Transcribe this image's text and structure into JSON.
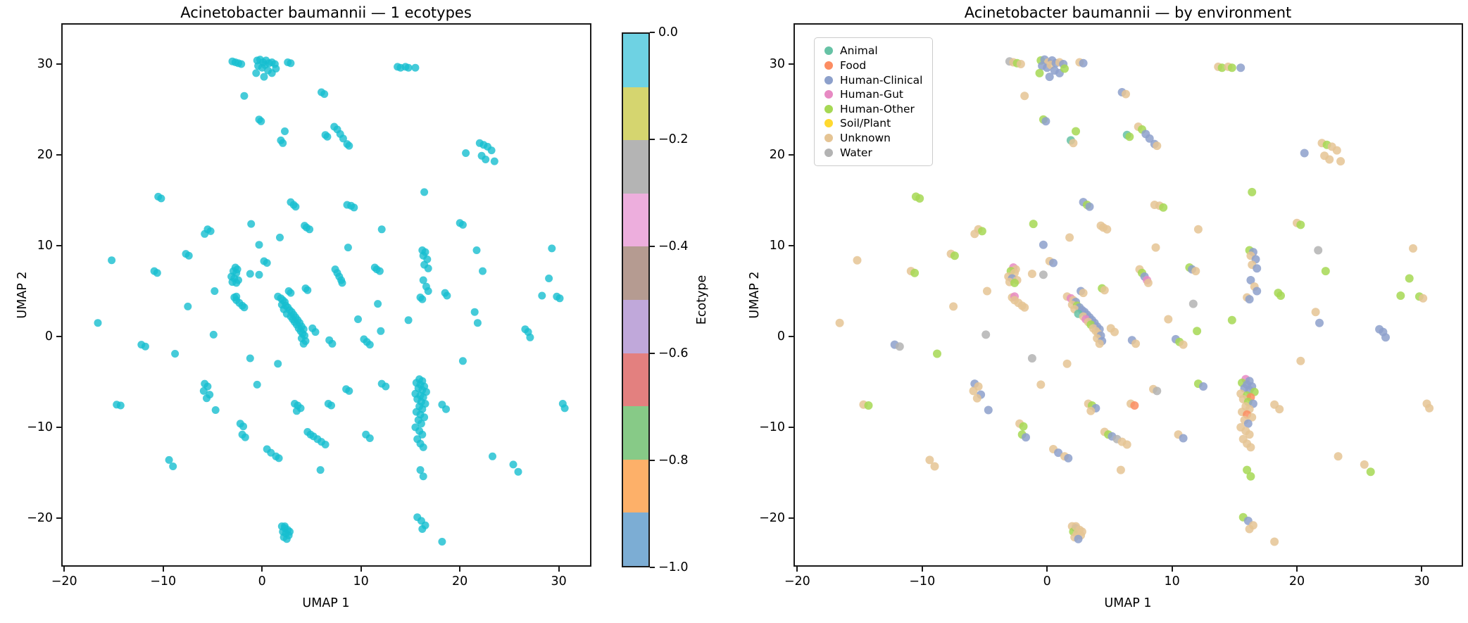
{
  "left_plot": {
    "title": "Acinetobacter baumannii — 1 ecotypes",
    "xlabel": "UMAP 1",
    "ylabel": "UMAP 2",
    "marker_color": "#17becf"
  },
  "right_plot": {
    "title": "Acinetobacter baumannii — by environment",
    "xlabel": "UMAP 1",
    "ylabel": "UMAP 2"
  },
  "colorbar": {
    "label": "Ecotype",
    "tick_labels": [
      "0.0",
      "−0.2",
      "−0.4",
      "−0.6",
      "−0.8",
      "−1.0"
    ],
    "segments": [
      "#6ed2e3",
      "#d5d56f",
      "#b4b4b4",
      "#edaedd",
      "#b59b91",
      "#c0a8da",
      "#e3807f",
      "#87ca87",
      "#fdb069",
      "#7cadd4"
    ]
  },
  "legend": {
    "entries": [
      {
        "key": "A",
        "label": "Animal",
        "color": "#66c2a5"
      },
      {
        "key": "F",
        "label": "Food",
        "color": "#fc8d62"
      },
      {
        "key": "HC",
        "label": "Human-Clinical",
        "color": "#8da0cb"
      },
      {
        "key": "HG",
        "label": "Human-Gut",
        "color": "#e78ac3"
      },
      {
        "key": "HO",
        "label": "Human-Other",
        "color": "#a6d854"
      },
      {
        "key": "SP",
        "label": "Soil/Plant",
        "color": "#ffd92f"
      },
      {
        "key": "U",
        "label": "Unknown",
        "color": "#e5c494"
      },
      {
        "key": "W",
        "label": "Water",
        "color": "#b3b3b3"
      }
    ]
  },
  "chart_data": {
    "type": "scatter",
    "subplots": [
      "UMAP colored by single ecotype (all points ecotype 0, cyan)",
      "UMAP colored by environment"
    ],
    "xlabel": "UMAP 1",
    "ylabel": "UMAP 2",
    "xlim": [
      -20.3,
      33.3
    ],
    "ylim": [
      -25.35,
      34.5
    ],
    "x_ticks": [
      -20,
      -10,
      0,
      10,
      20,
      30
    ],
    "y_ticks": [
      30,
      20,
      10,
      0,
      -10,
      -20
    ],
    "x_tick_labels": [
      "−20",
      "−10",
      "0",
      "10",
      "20",
      "30"
    ],
    "y_tick_labels": [
      "30",
      "20",
      "10",
      "0",
      "−10",
      "−20"
    ],
    "grid": false,
    "legend_position": "upper left",
    "ecotype_of_all_points": 0,
    "colorbar_range": [
      0.0,
      -1.0
    ],
    "env_colors": {
      "A": "#66c2a5",
      "F": "#fc8d62",
      "HC": "#8da0cb",
      "HG": "#e78ac3",
      "HO": "#a6d854",
      "SP": "#ffd92f",
      "U": "#e5c494",
      "W": "#b3b3b3"
    },
    "points": [
      [
        -3.0,
        30.3,
        "W"
      ],
      [
        -2.7,
        30.2,
        "U"
      ],
      [
        -2.4,
        30.1,
        "HO"
      ],
      [
        -2.1,
        30.0,
        "U"
      ],
      [
        -0.5,
        30.4,
        "HO"
      ],
      [
        -0.2,
        30.5,
        "HC"
      ],
      [
        0.1,
        30.2,
        "U"
      ],
      [
        0.4,
        30.4,
        "HC"
      ],
      [
        -0.4,
        29.8,
        "HC"
      ],
      [
        0.0,
        29.6,
        "HC"
      ],
      [
        0.3,
        29.9,
        "U"
      ],
      [
        0.7,
        30.1,
        "HC"
      ],
      [
        1.0,
        30.2,
        "U"
      ],
      [
        1.3,
        30.0,
        "HC"
      ],
      [
        0.6,
        29.3,
        "HC"
      ],
      [
        1.0,
        29.0,
        "HC"
      ],
      [
        0.2,
        28.6,
        "HC"
      ],
      [
        1.4,
        29.5,
        "HO"
      ],
      [
        -0.6,
        29.0,
        "HO"
      ],
      [
        2.6,
        30.2,
        "U"
      ],
      [
        2.9,
        30.1,
        "HC"
      ],
      [
        13.7,
        29.7,
        "U"
      ],
      [
        14.0,
        29.6,
        "HO"
      ],
      [
        14.5,
        29.7,
        "U"
      ],
      [
        14.8,
        29.6,
        "HO"
      ],
      [
        15.5,
        29.6,
        "HC"
      ],
      [
        6.0,
        26.9,
        "HC"
      ],
      [
        6.3,
        26.7,
        "U"
      ],
      [
        -1.8,
        26.5,
        "U"
      ],
      [
        -0.3,
        23.9,
        "HO"
      ],
      [
        -0.1,
        23.7,
        "HC"
      ],
      [
        2.3,
        22.6,
        "HO"
      ],
      [
        1.9,
        21.6,
        "A"
      ],
      [
        2.1,
        21.3,
        "U"
      ],
      [
        6.4,
        22.2,
        "A"
      ],
      [
        6.6,
        22.0,
        "HO"
      ],
      [
        7.3,
        23.1,
        "U"
      ],
      [
        7.6,
        22.8,
        "HO"
      ],
      [
        7.9,
        22.3,
        "HC"
      ],
      [
        8.2,
        21.8,
        "HC"
      ],
      [
        8.6,
        21.2,
        "HC"
      ],
      [
        8.8,
        21.0,
        "U"
      ],
      [
        20.6,
        20.2,
        "HC"
      ],
      [
        22.0,
        21.3,
        "U"
      ],
      [
        22.4,
        21.1,
        "HO"
      ],
      [
        22.8,
        20.9,
        "U"
      ],
      [
        23.2,
        20.5,
        "U"
      ],
      [
        22.2,
        19.9,
        "U"
      ],
      [
        22.6,
        19.5,
        "U"
      ],
      [
        23.5,
        19.3,
        "U"
      ],
      [
        -10.5,
        15.4,
        "HO"
      ],
      [
        -10.2,
        15.2,
        "HO"
      ],
      [
        16.4,
        15.9,
        "HO"
      ],
      [
        2.9,
        14.8,
        "HC"
      ],
      [
        3.2,
        14.5,
        "HO"
      ],
      [
        3.4,
        14.3,
        "HC"
      ],
      [
        8.6,
        14.5,
        "U"
      ],
      [
        9.0,
        14.4,
        "U"
      ],
      [
        9.3,
        14.2,
        "HO"
      ],
      [
        20.0,
        12.5,
        "U"
      ],
      [
        20.3,
        12.3,
        "HO"
      ],
      [
        12.1,
        11.8,
        "U"
      ],
      [
        -1.1,
        12.4,
        "HO"
      ],
      [
        4.3,
        12.2,
        "U"
      ],
      [
        4.5,
        12.0,
        "U"
      ],
      [
        4.8,
        11.8,
        "U"
      ],
      [
        1.8,
        10.9,
        "U"
      ],
      [
        -5.5,
        11.8,
        "U"
      ],
      [
        -5.2,
        11.6,
        "HO"
      ],
      [
        -5.8,
        11.3,
        "U"
      ],
      [
        -0.3,
        10.1,
        "HC"
      ],
      [
        8.7,
        9.8,
        "U"
      ],
      [
        -7.7,
        9.1,
        "U"
      ],
      [
        -7.4,
        8.9,
        "HO"
      ],
      [
        21.7,
        9.5,
        "W"
      ],
      [
        29.3,
        9.7,
        "U"
      ],
      [
        -15.2,
        8.4,
        "U"
      ],
      [
        0.2,
        8.3,
        "U"
      ],
      [
        0.5,
        8.1,
        "HC"
      ],
      [
        -10.9,
        7.2,
        "U"
      ],
      [
        -10.6,
        7.0,
        "HO"
      ],
      [
        -2.7,
        7.6,
        "HG"
      ],
      [
        -2.5,
        7.4,
        "U"
      ],
      [
        -2.9,
        7.2,
        "HO"
      ],
      [
        -2.6,
        7.0,
        "U"
      ],
      [
        -3.1,
        6.6,
        "U"
      ],
      [
        -2.8,
        6.4,
        "HC"
      ],
      [
        -2.4,
        6.2,
        "U"
      ],
      [
        -3.0,
        6.0,
        "U"
      ],
      [
        -2.6,
        5.9,
        "HO"
      ],
      [
        -1.2,
        6.9,
        "U"
      ],
      [
        -0.3,
        6.8,
        "W"
      ],
      [
        7.4,
        7.4,
        "U"
      ],
      [
        7.6,
        7.0,
        "HO"
      ],
      [
        7.8,
        6.6,
        "HC"
      ],
      [
        8.0,
        6.2,
        "HG"
      ],
      [
        8.1,
        5.9,
        "U"
      ],
      [
        11.4,
        7.6,
        "HO"
      ],
      [
        11.6,
        7.4,
        "HC"
      ],
      [
        11.9,
        7.2,
        "U"
      ],
      [
        16.2,
        9.5,
        "HO"
      ],
      [
        16.5,
        9.3,
        "HC"
      ],
      [
        16.3,
        8.9,
        "U"
      ],
      [
        16.7,
        8.5,
        "HC"
      ],
      [
        16.4,
        7.9,
        "U"
      ],
      [
        16.8,
        7.5,
        "HC"
      ],
      [
        22.3,
        7.2,
        "HO"
      ],
      [
        29.0,
        6.4,
        "HO"
      ],
      [
        -4.8,
        5.0,
        "U"
      ],
      [
        2.7,
        5.0,
        "HC"
      ],
      [
        2.9,
        4.8,
        "U"
      ],
      [
        4.4,
        5.3,
        "HO"
      ],
      [
        4.6,
        5.1,
        "U"
      ],
      [
        16.3,
        6.2,
        "HC"
      ],
      [
        16.6,
        5.5,
        "U"
      ],
      [
        16.8,
        5.0,
        "HC"
      ],
      [
        18.5,
        4.8,
        "HO"
      ],
      [
        28.3,
        4.5,
        "HO"
      ],
      [
        29.8,
        4.4,
        "HO"
      ],
      [
        30.1,
        4.2,
        "U"
      ],
      [
        16.0,
        4.3,
        "U"
      ],
      [
        16.2,
        4.1,
        "HC"
      ],
      [
        18.7,
        4.5,
        "HO"
      ],
      [
        11.7,
        3.6,
        "W"
      ],
      [
        -7.5,
        3.3,
        "U"
      ],
      [
        -2.8,
        4.3,
        "U"
      ],
      [
        -2.6,
        4.4,
        "HG"
      ],
      [
        -2.6,
        4.0,
        "U"
      ],
      [
        -2.3,
        3.7,
        "U"
      ],
      [
        -2.0,
        3.4,
        "U"
      ],
      [
        -1.8,
        3.2,
        "U"
      ],
      [
        -16.6,
        1.5,
        "U"
      ],
      [
        9.7,
        1.9,
        "U"
      ],
      [
        14.8,
        1.8,
        "HO"
      ],
      [
        12.0,
        0.6,
        "HO"
      ],
      [
        21.5,
        2.7,
        "U"
      ],
      [
        21.8,
        1.5,
        "HC"
      ],
      [
        26.6,
        0.8,
        "HC"
      ],
      [
        26.9,
        0.5,
        "HC"
      ],
      [
        27.1,
        -0.1,
        "HC"
      ],
      [
        1.6,
        4.4,
        "U"
      ],
      [
        1.9,
        4.2,
        "HG"
      ],
      [
        2.1,
        4.0,
        "U"
      ],
      [
        2.3,
        3.8,
        "HC"
      ],
      [
        2.0,
        3.5,
        "U"
      ],
      [
        2.4,
        3.4,
        "HO"
      ],
      [
        2.6,
        3.2,
        "HC"
      ],
      [
        2.2,
        3.0,
        "U"
      ],
      [
        2.8,
        2.9,
        "HC"
      ],
      [
        3.0,
        2.7,
        "HC"
      ],
      [
        2.5,
        2.5,
        "A"
      ],
      [
        3.2,
        2.4,
        "HC"
      ],
      [
        2.9,
        2.2,
        "U"
      ],
      [
        3.4,
        2.1,
        "HC"
      ],
      [
        3.1,
        1.9,
        "HG"
      ],
      [
        3.6,
        1.8,
        "HC"
      ],
      [
        3.3,
        1.6,
        "U"
      ],
      [
        3.8,
        1.5,
        "HC"
      ],
      [
        3.5,
        1.3,
        "HO"
      ],
      [
        4.0,
        1.1,
        "HC"
      ],
      [
        3.7,
        0.9,
        "U"
      ],
      [
        4.2,
        0.8,
        "HC"
      ],
      [
        3.9,
        0.6,
        "U"
      ],
      [
        4.1,
        0.3,
        "U"
      ],
      [
        4.3,
        0.1,
        "HC"
      ],
      [
        4.0,
        -0.2,
        "U"
      ],
      [
        4.4,
        -0.5,
        "HC"
      ],
      [
        4.2,
        -0.8,
        "U"
      ],
      [
        5.1,
        0.9,
        "U"
      ],
      [
        5.4,
        0.5,
        "U"
      ],
      [
        6.8,
        -0.4,
        "HC"
      ],
      [
        7.1,
        -0.8,
        "U"
      ],
      [
        10.3,
        -0.3,
        "HC"
      ],
      [
        10.6,
        -0.6,
        "HO"
      ],
      [
        10.9,
        -0.9,
        "U"
      ],
      [
        -4.9,
        0.2,
        "W"
      ],
      [
        -12.2,
        -0.9,
        "HC"
      ],
      [
        -11.8,
        -1.1,
        "W"
      ],
      [
        -8.8,
        -1.9,
        "HO"
      ],
      [
        -1.2,
        -2.4,
        "W"
      ],
      [
        1.6,
        -3.0,
        "U"
      ],
      [
        20.3,
        -2.7,
        "U"
      ],
      [
        -0.5,
        -5.3,
        "U"
      ],
      [
        -5.8,
        -5.2,
        "HC"
      ],
      [
        -5.5,
        -5.5,
        "U"
      ],
      [
        -5.9,
        -6.0,
        "U"
      ],
      [
        -5.3,
        -6.4,
        "HC"
      ],
      [
        -5.6,
        -6.8,
        "U"
      ],
      [
        8.5,
        -5.8,
        "U"
      ],
      [
        8.8,
        -6.0,
        "W"
      ],
      [
        12.1,
        -5.2,
        "HO"
      ],
      [
        12.5,
        -5.5,
        "HC"
      ],
      [
        15.9,
        -4.7,
        "HG"
      ],
      [
        16.2,
        -4.9,
        "HC"
      ],
      [
        15.6,
        -5.1,
        "HO"
      ],
      [
        16.0,
        -5.3,
        "HC"
      ],
      [
        16.4,
        -5.5,
        "HC"
      ],
      [
        15.8,
        -5.7,
        "HC"
      ],
      [
        16.2,
        -5.9,
        "HC"
      ],
      [
        16.6,
        -6.1,
        "HO"
      ],
      [
        15.5,
        -6.3,
        "U"
      ],
      [
        16.0,
        -6.5,
        "HO"
      ],
      [
        16.3,
        -6.7,
        "F"
      ],
      [
        15.7,
        -6.9,
        "U"
      ],
      [
        16.1,
        -7.2,
        "HO"
      ],
      [
        16.5,
        -7.4,
        "HC"
      ],
      [
        15.9,
        -7.7,
        "U"
      ],
      [
        16.2,
        -8.0,
        "U"
      ],
      [
        15.6,
        -8.3,
        "U"
      ],
      [
        16.0,
        -8.6,
        "F"
      ],
      [
        16.4,
        -8.9,
        "U"
      ],
      [
        15.8,
        -9.2,
        "U"
      ],
      [
        16.1,
        -9.6,
        "HC"
      ],
      [
        15.5,
        -10.0,
        "U"
      ],
      [
        15.9,
        -10.4,
        "U"
      ],
      [
        16.2,
        -10.8,
        "U"
      ],
      [
        15.7,
        -11.3,
        "U"
      ],
      [
        16.0,
        -11.8,
        "U"
      ],
      [
        16.3,
        -12.2,
        "U"
      ],
      [
        18.2,
        -7.5,
        "U"
      ],
      [
        18.6,
        -8.0,
        "U"
      ],
      [
        6.7,
        -7.4,
        "U"
      ],
      [
        7.0,
        -7.6,
        "F"
      ],
      [
        3.3,
        -7.4,
        "U"
      ],
      [
        3.6,
        -7.6,
        "HO"
      ],
      [
        3.9,
        -7.9,
        "HC"
      ],
      [
        3.5,
        -8.2,
        "U"
      ],
      [
        -14.7,
        -7.5,
        "U"
      ],
      [
        -14.3,
        -7.6,
        "HO"
      ],
      [
        -4.7,
        -8.1,
        "HC"
      ],
      [
        30.4,
        -7.4,
        "U"
      ],
      [
        30.6,
        -7.9,
        "U"
      ],
      [
        -2.2,
        -9.6,
        "U"
      ],
      [
        -1.9,
        -9.9,
        "HO"
      ],
      [
        -2.0,
        -10.8,
        "HO"
      ],
      [
        -1.7,
        -11.1,
        "HC"
      ],
      [
        10.5,
        -10.8,
        "U"
      ],
      [
        10.9,
        -11.2,
        "HC"
      ],
      [
        4.6,
        -10.5,
        "U"
      ],
      [
        4.9,
        -10.8,
        "HO"
      ],
      [
        5.2,
        -11.0,
        "HC"
      ],
      [
        5.6,
        -11.3,
        "W"
      ],
      [
        6.0,
        -11.6,
        "U"
      ],
      [
        6.4,
        -11.9,
        "U"
      ],
      [
        0.5,
        -12.4,
        "U"
      ],
      [
        0.9,
        -12.8,
        "HC"
      ],
      [
        1.4,
        -13.2,
        "U"
      ],
      [
        1.7,
        -13.4,
        "HC"
      ],
      [
        5.9,
        -14.7,
        "U"
      ],
      [
        -9.4,
        -13.6,
        "U"
      ],
      [
        -9.0,
        -14.3,
        "U"
      ],
      [
        23.3,
        -13.2,
        "U"
      ],
      [
        25.4,
        -14.1,
        "U"
      ],
      [
        25.9,
        -14.9,
        "HO"
      ],
      [
        16.0,
        -14.7,
        "HO"
      ],
      [
        16.3,
        -15.4,
        "HO"
      ],
      [
        15.7,
        -19.9,
        "HO"
      ],
      [
        16.1,
        -20.3,
        "HC"
      ],
      [
        16.5,
        -20.8,
        "U"
      ],
      [
        16.2,
        -21.2,
        "U"
      ],
      [
        18.2,
        -22.6,
        "U"
      ],
      [
        2.0,
        -20.9,
        "U"
      ],
      [
        2.3,
        -21.1,
        "HC"
      ],
      [
        2.6,
        -21.3,
        "U"
      ],
      [
        2.1,
        -21.5,
        "HO"
      ],
      [
        2.4,
        -21.7,
        "U"
      ],
      [
        2.7,
        -21.9,
        "U"
      ],
      [
        2.2,
        -22.1,
        "U"
      ],
      [
        2.5,
        -22.3,
        "HC"
      ],
      [
        2.8,
        -21.5,
        "U"
      ],
      [
        2.3,
        -20.9,
        "U"
      ]
    ]
  }
}
